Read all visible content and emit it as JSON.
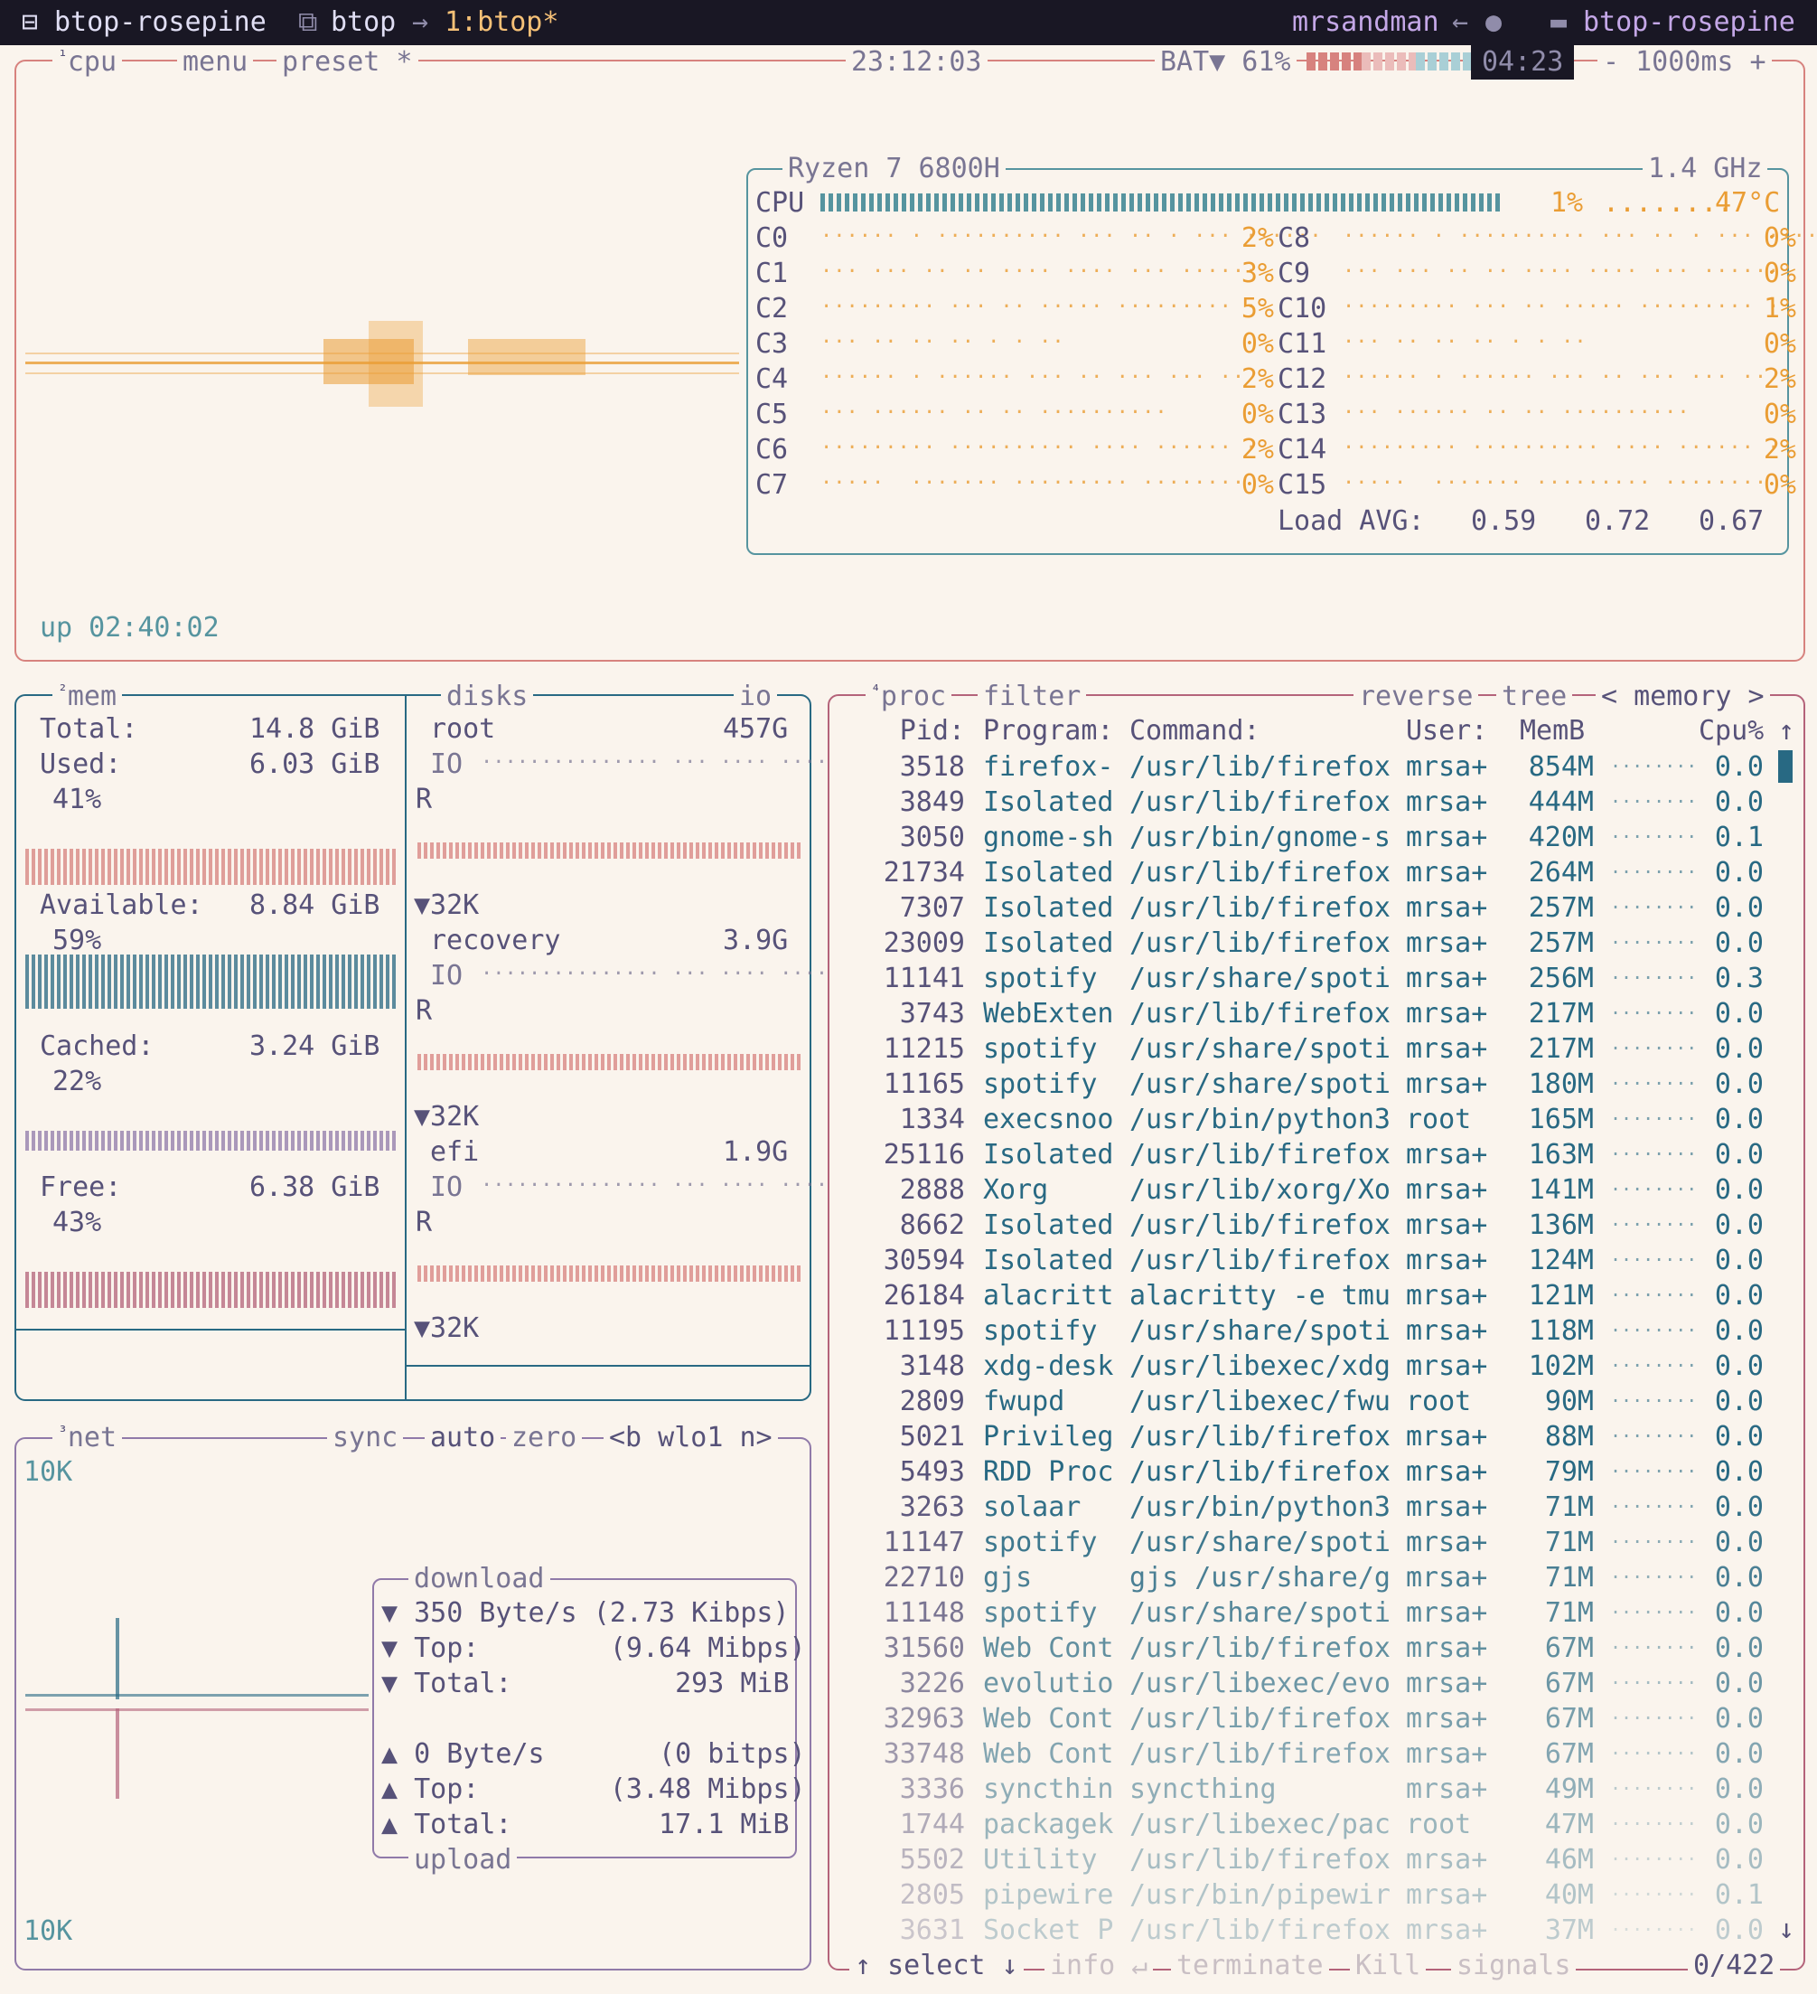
{
  "topbar": {
    "session_icon": "window-icon",
    "session": "btop-rosepine",
    "window_icon": "windows-icon",
    "window": "btop",
    "arrow": "→",
    "pane": "1:btop*",
    "user": "mrsandman",
    "user_arrow": "←",
    "user_icon": "user-icon",
    "folder_icon": "folder-icon",
    "folder": "btop-rosepine"
  },
  "cpu": {
    "num": "¹",
    "title": "cpu",
    "menu": "menu",
    "preset": "preset *",
    "clock": "23:12:03",
    "battery_label": "BAT▼ 61%",
    "battery_time": "04:23",
    "battery_percent": 61,
    "interval": "- 1000ms +",
    "uptime": "up 02:40:02",
    "model": "Ryzen 7 6800H",
    "freq": "1.4 GHz",
    "total_label": "CPU",
    "total_pct": "1%",
    "total_bar_fraction": 1.0,
    "temp": "47°C",
    "cores_left": [
      {
        "name": "C0",
        "pct": "2%"
      },
      {
        "name": "C1",
        "pct": "3%"
      },
      {
        "name": "C2",
        "pct": "5%"
      },
      {
        "name": "C3",
        "pct": "0%"
      },
      {
        "name": "C4",
        "pct": "2%"
      },
      {
        "name": "C5",
        "pct": "0%"
      },
      {
        "name": "C6",
        "pct": "2%"
      },
      {
        "name": "C7",
        "pct": "0%"
      }
    ],
    "cores_right": [
      {
        "name": "C8",
        "pct": "0%"
      },
      {
        "name": "C9",
        "pct": "0%"
      },
      {
        "name": "C10",
        "pct": "1%"
      },
      {
        "name": "C11",
        "pct": "0%"
      },
      {
        "name": "C12",
        "pct": "2%"
      },
      {
        "name": "C13",
        "pct": "0%"
      },
      {
        "name": "C14",
        "pct": "2%"
      },
      {
        "name": "C15",
        "pct": "0%"
      }
    ],
    "load_label": "Load AVG:",
    "load": [
      "0.59",
      "0.72",
      "0.67"
    ]
  },
  "mem": {
    "num": "²",
    "title": "mem",
    "total_label": "Total:",
    "total": "14.8 GiB",
    "used_label": "Used:",
    "used": "6.03 GiB",
    "used_pct": "41%",
    "avail_label": "Available:",
    "avail": "8.84 GiB",
    "avail_pct": "59%",
    "cached_label": "Cached:",
    "cached": "3.24 GiB",
    "cached_pct": "22%",
    "free_label": "Free:",
    "free": "6.38 GiB",
    "free_pct": "43%"
  },
  "disks": {
    "title": "disks",
    "io": "io",
    "items": [
      {
        "name": "root",
        "size": "457G",
        "io": "IO",
        "r": "R",
        "w": "▼32K"
      },
      {
        "name": "recovery",
        "size": "3.9G",
        "io": "IO",
        "r": "R",
        "w": "▼32K"
      },
      {
        "name": "efi",
        "size": "1.9G",
        "io": "IO",
        "r": "R",
        "w": "▼32K"
      }
    ]
  },
  "net": {
    "num": "³",
    "title": "net",
    "sync": "sync",
    "auto": "auto",
    "zero": "zero",
    "iface": "<b wlo1 n>",
    "scale_top": "10K",
    "scale_bottom": "10K",
    "download_title": "download",
    "upload_title": "upload",
    "down_rate": "▼ 350 Byte/s (2.73 Kibps)",
    "down_top": "▼ Top:        (9.64 Mibps)",
    "down_total": "▼ Total:          293 MiB",
    "up_rate": "▲ 0 Byte/s       (0 bitps)",
    "up_top": "▲ Top:        (3.48 Mibps)",
    "up_total": "▲ Total:         17.1 MiB"
  },
  "proc": {
    "num": "⁴",
    "title": "proc",
    "filter": "filter",
    "reverse": "reverse",
    "tree": "tree",
    "sort": "< memory >",
    "headers": {
      "pid": "Pid:",
      "program": "Program:",
      "command": "Command:",
      "user": "User:",
      "mem": "MemB",
      "cpu": "Cpu%"
    },
    "scroll_up": "↑",
    "scroll_down": "↓",
    "rows": [
      {
        "pid": "3518",
        "program": "firefox-",
        "command": "/usr/lib/firefox",
        "user": "mrsa+",
        "mem": "854M",
        "cpu": "0.0"
      },
      {
        "pid": "3849",
        "program": "Isolated",
        "command": "/usr/lib/firefox",
        "user": "mrsa+",
        "mem": "444M",
        "cpu": "0.0"
      },
      {
        "pid": "3050",
        "program": "gnome-sh",
        "command": "/usr/bin/gnome-s",
        "user": "mrsa+",
        "mem": "420M",
        "cpu": "0.1"
      },
      {
        "pid": "21734",
        "program": "Isolated",
        "command": "/usr/lib/firefox",
        "user": "mrsa+",
        "mem": "264M",
        "cpu": "0.0"
      },
      {
        "pid": "7307",
        "program": "Isolated",
        "command": "/usr/lib/firefox",
        "user": "mrsa+",
        "mem": "257M",
        "cpu": "0.0"
      },
      {
        "pid": "23009",
        "program": "Isolated",
        "command": "/usr/lib/firefox",
        "user": "mrsa+",
        "mem": "257M",
        "cpu": "0.0"
      },
      {
        "pid": "11141",
        "program": "spotify",
        "command": "/usr/share/spoti",
        "user": "mrsa+",
        "mem": "256M",
        "cpu": "0.3"
      },
      {
        "pid": "3743",
        "program": "WebExten",
        "command": "/usr/lib/firefox",
        "user": "mrsa+",
        "mem": "217M",
        "cpu": "0.0"
      },
      {
        "pid": "11215",
        "program": "spotify",
        "command": "/usr/share/spoti",
        "user": "mrsa+",
        "mem": "217M",
        "cpu": "0.0"
      },
      {
        "pid": "11165",
        "program": "spotify",
        "command": "/usr/share/spoti",
        "user": "mrsa+",
        "mem": "180M",
        "cpu": "0.0"
      },
      {
        "pid": "1334",
        "program": "execsnoo",
        "command": "/usr/bin/python3",
        "user": "root",
        "mem": "165M",
        "cpu": "0.0"
      },
      {
        "pid": "25116",
        "program": "Isolated",
        "command": "/usr/lib/firefox",
        "user": "mrsa+",
        "mem": "163M",
        "cpu": "0.0"
      },
      {
        "pid": "2888",
        "program": "Xorg",
        "command": "/usr/lib/xorg/Xo",
        "user": "mrsa+",
        "mem": "141M",
        "cpu": "0.0"
      },
      {
        "pid": "8662",
        "program": "Isolated",
        "command": "/usr/lib/firefox",
        "user": "mrsa+",
        "mem": "136M",
        "cpu": "0.0"
      },
      {
        "pid": "30594",
        "program": "Isolated",
        "command": "/usr/lib/firefox",
        "user": "mrsa+",
        "mem": "124M",
        "cpu": "0.0"
      },
      {
        "pid": "26184",
        "program": "alacritt",
        "command": "alacritty -e tmu",
        "user": "mrsa+",
        "mem": "121M",
        "cpu": "0.0"
      },
      {
        "pid": "11195",
        "program": "spotify",
        "command": "/usr/share/spoti",
        "user": "mrsa+",
        "mem": "118M",
        "cpu": "0.0"
      },
      {
        "pid": "3148",
        "program": "xdg-desk",
        "command": "/usr/libexec/xdg",
        "user": "mrsa+",
        "mem": "102M",
        "cpu": "0.0"
      },
      {
        "pid": "2809",
        "program": "fwupd",
        "command": "/usr/libexec/fwu",
        "user": "root",
        "mem": "90M",
        "cpu": "0.0"
      },
      {
        "pid": "5021",
        "program": "Privileg",
        "command": "/usr/lib/firefox",
        "user": "mrsa+",
        "mem": "88M",
        "cpu": "0.0"
      },
      {
        "pid": "5493",
        "program": "RDD Proc",
        "command": "/usr/lib/firefox",
        "user": "mrsa+",
        "mem": "79M",
        "cpu": "0.0"
      },
      {
        "pid": "3263",
        "program": "solaar",
        "command": "/usr/bin/python3",
        "user": "mrsa+",
        "mem": "71M",
        "cpu": "0.0"
      },
      {
        "pid": "11147",
        "program": "spotify",
        "command": "/usr/share/spoti",
        "user": "mrsa+",
        "mem": "71M",
        "cpu": "0.0"
      },
      {
        "pid": "22710",
        "program": "gjs",
        "command": "gjs /usr/share/g",
        "user": "mrsa+",
        "mem": "71M",
        "cpu": "0.0"
      },
      {
        "pid": "11148",
        "program": "spotify",
        "command": "/usr/share/spoti",
        "user": "mrsa+",
        "mem": "71M",
        "cpu": "0.0"
      },
      {
        "pid": "31560",
        "program": "Web Cont",
        "command": "/usr/lib/firefox",
        "user": "mrsa+",
        "mem": "67M",
        "cpu": "0.0"
      },
      {
        "pid": "3226",
        "program": "evolutio",
        "command": "/usr/libexec/evo",
        "user": "mrsa+",
        "mem": "67M",
        "cpu": "0.0"
      },
      {
        "pid": "32963",
        "program": "Web Cont",
        "command": "/usr/lib/firefox",
        "user": "mrsa+",
        "mem": "67M",
        "cpu": "0.0"
      },
      {
        "pid": "33748",
        "program": "Web Cont",
        "command": "/usr/lib/firefox",
        "user": "mrsa+",
        "mem": "67M",
        "cpu": "0.0"
      },
      {
        "pid": "3336",
        "program": "syncthin",
        "command": "syncthing",
        "user": "mrsa+",
        "mem": "49M",
        "cpu": "0.0"
      },
      {
        "pid": "1744",
        "program": "packagek",
        "command": "/usr/libexec/pac",
        "user": "root",
        "mem": "47M",
        "cpu": "0.0"
      },
      {
        "pid": "5502",
        "program": "Utility",
        "command": "/usr/lib/firefox",
        "user": "mrsa+",
        "mem": "46M",
        "cpu": "0.0"
      },
      {
        "pid": "2805",
        "program": "pipewire",
        "command": "/usr/bin/pipewir",
        "user": "mrsa+",
        "mem": "40M",
        "cpu": "0.1"
      },
      {
        "pid": "3631",
        "program": "Socket P",
        "command": "/usr/lib/firefox",
        "user": "mrsa+",
        "mem": "37M",
        "cpu": "0.0"
      }
    ],
    "footer": {
      "select": "↑ select ↓",
      "info": "info ↵",
      "terminate": "terminate",
      "kill": "Kill",
      "signals": "signals",
      "count": "0/422"
    }
  },
  "colors": {
    "background": "#faf4ed",
    "cpu_border": "#d7827e",
    "mem_border": "#286983",
    "net_border": "#907aa9",
    "proc_border": "#b4637a",
    "accent_gold": "#ea9d34",
    "accent_pine": "#286983",
    "text": "#575279"
  }
}
